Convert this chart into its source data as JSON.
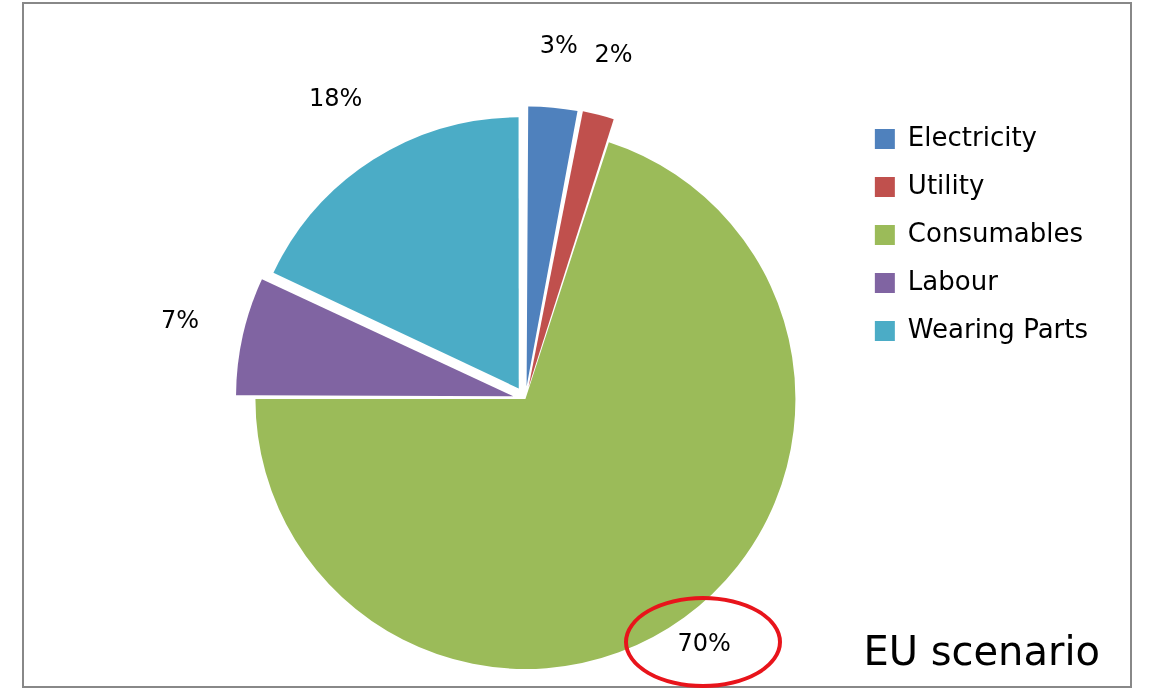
{
  "chart_data": {
    "type": "pie",
    "categories": [
      "Electricity",
      "Utility",
      "Consumables",
      "Labour",
      "Wearing Parts"
    ],
    "values": [
      3,
      2,
      70,
      7,
      18
    ],
    "colors": [
      "#4f81bd",
      "#c0504d",
      "#9bbb59",
      "#8064a2",
      "#4bacc6"
    ],
    "value_labels": [
      "3%",
      "2%",
      "70%",
      "7%",
      "18%"
    ],
    "legend": "top right",
    "annotations": [
      "EU scenario"
    ]
  }
}
